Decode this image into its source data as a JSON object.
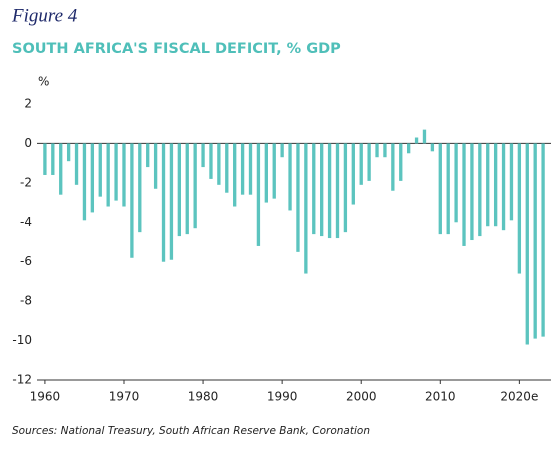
{
  "chart_data": {
    "type": "bar",
    "figure_label": "Figure 4",
    "title": "SOUTH AFRICA'S FISCAL DEFICIT, % GDP",
    "y_unit": "%",
    "source": "Sources: National Treasury, South African Reserve Bank, Coronation",
    "color": "#5cc4bf",
    "x": [
      1960,
      1961,
      1962,
      1963,
      1964,
      1965,
      1966,
      1967,
      1968,
      1969,
      1970,
      1971,
      1972,
      1973,
      1974,
      1975,
      1976,
      1977,
      1978,
      1979,
      1980,
      1981,
      1982,
      1983,
      1984,
      1985,
      1986,
      1987,
      1988,
      1989,
      1990,
      1991,
      1992,
      1993,
      1994,
      1995,
      1996,
      1997,
      1998,
      1999,
      2000,
      2001,
      2002,
      2003,
      2004,
      2005,
      2006,
      2007,
      2008,
      2009,
      2010,
      2011,
      2012,
      2013,
      2014,
      2015,
      2016,
      2017,
      2018,
      2019,
      2020,
      2021,
      2022,
      2023
    ],
    "values": [
      -1.6,
      -1.6,
      -2.6,
      -0.9,
      -2.1,
      -3.9,
      -3.5,
      -2.7,
      -3.2,
      -2.9,
      -3.2,
      -5.8,
      -4.5,
      -1.2,
      -2.3,
      -6.0,
      -5.9,
      -4.7,
      -4.6,
      -4.3,
      -1.2,
      -1.8,
      -2.1,
      -2.5,
      -3.2,
      -2.6,
      -2.6,
      -5.2,
      -3.0,
      -2.8,
      -0.7,
      -3.4,
      -5.5,
      -6.6,
      -4.6,
      -4.7,
      -4.8,
      -4.8,
      -4.5,
      -3.1,
      -2.1,
      -1.9,
      -0.7,
      -0.7,
      -2.4,
      -1.9,
      -0.5,
      0.3,
      0.7,
      -0.4,
      -4.6,
      -4.6,
      -4.0,
      -5.2,
      -4.9,
      -4.7,
      -4.2,
      -4.2,
      -4.4,
      -3.9,
      -6.6,
      -10.2,
      -9.9,
      -9.8
    ],
    "xlim": [
      1959,
      2024
    ],
    "xticks": [
      1960,
      1970,
      1980,
      1990,
      2000,
      2010,
      {
        "value": 2020,
        "label": "2020e"
      }
    ],
    "ylim": [
      -12,
      2
    ],
    "yticks": [
      2,
      0,
      -2,
      -4,
      -6,
      -8,
      -10,
      -12
    ],
    "grid": false
  }
}
